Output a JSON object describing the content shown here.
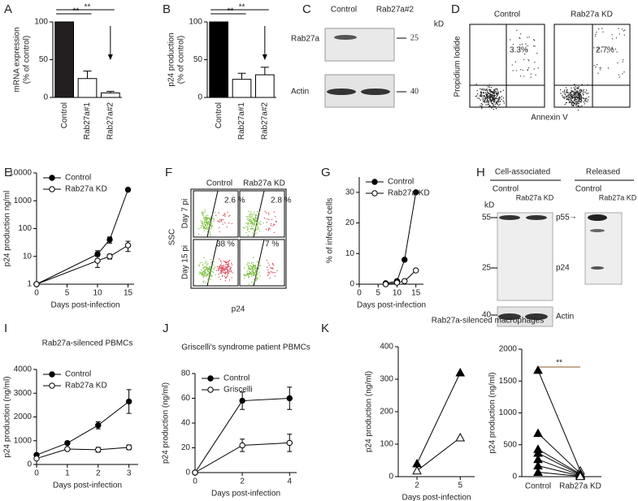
{
  "chart_data": [
    {
      "type": "bar",
      "panel": "A",
      "ylabel": [
        "mRNA expression",
        "(% of control)"
      ],
      "categories": [
        "Control",
        "Rab27a#1",
        "Rab27a#2"
      ],
      "values": [
        100,
        25,
        6
      ],
      "errors": [
        0,
        10,
        2
      ],
      "fills": [
        "#231f20",
        "#ffffff",
        "#ffffff"
      ],
      "ylim": [
        0,
        100
      ],
      "yticks": [
        0,
        50,
        100
      ],
      "significance": [
        "**",
        "**"
      ]
    },
    {
      "type": "bar",
      "panel": "B",
      "ylabel": [
        "p24 production",
        "(% of control)"
      ],
      "categories": [
        "Control",
        "Rab27a#1",
        "Rab27a#2"
      ],
      "values": [
        100,
        24,
        30
      ],
      "errors": [
        0,
        8,
        10
      ],
      "fills": [
        "#000000",
        "#ffffff",
        "#ffffff"
      ],
      "ylim": [
        0,
        100
      ],
      "yticks": [
        0,
        50,
        100
      ],
      "significance": [
        "**",
        "**"
      ]
    },
    {
      "type": "line",
      "panel": "E",
      "ylabel": [
        "p24 production ng/ml"
      ],
      "xlabel": "Days post-infection",
      "x": [
        0,
        10,
        12,
        15
      ],
      "log_y": true,
      "xlim": [
        0,
        16
      ],
      "ylim": [
        1,
        10000
      ],
      "xticks": [
        0,
        5,
        10,
        15
      ],
      "yticks": [
        1,
        10,
        100,
        1000,
        10000
      ],
      "legend": "upper left",
      "series": [
        {
          "name": "Control",
          "color": "#000000",
          "filled": true,
          "values": [
            1,
            12,
            40,
            2500
          ],
          "errors": [
            0,
            4,
            10,
            0
          ]
        },
        {
          "name": "Rab27a KD",
          "color": "#000000",
          "filled": false,
          "values": [
            1,
            7,
            10,
            25
          ],
          "errors": [
            0,
            3,
            2,
            10
          ]
        }
      ]
    },
    {
      "type": "line",
      "panel": "G",
      "ylabel": [
        "% of infected cells"
      ],
      "xlabel": "Days post-infection",
      "x": [
        7,
        10,
        12,
        15
      ],
      "xlim": [
        0,
        17
      ],
      "ylim": [
        0,
        35
      ],
      "xticks": [
        0,
        5,
        10,
        15
      ],
      "yticks": [
        0,
        10,
        20,
        30
      ],
      "legend": "upper left",
      "series": [
        {
          "name": "Control",
          "color": "#000000",
          "filled": true,
          "values": [
            0.3,
            1,
            8,
            30
          ]
        },
        {
          "name": "Rab27a KD",
          "color": "#000000",
          "filled": false,
          "values": [
            0,
            0.5,
            1,
            4.5
          ]
        }
      ]
    },
    {
      "type": "line",
      "panel": "I",
      "title": "Rab27a-silenced PBMCs",
      "ylabel": [
        "p24 production (ng/ml)"
      ],
      "xlabel": "Days post-infection",
      "x": [
        0,
        1,
        2,
        3
      ],
      "xlim": [
        0,
        3.3
      ],
      "ylim": [
        0,
        4000
      ],
      "xticks": [
        0,
        1,
        2,
        3
      ],
      "yticks": [
        0,
        1000,
        2000,
        3000,
        4000
      ],
      "legend": "upper left",
      "series": [
        {
          "name": "Control",
          "color": "#000000",
          "filled": true,
          "values": [
            400,
            900,
            1650,
            2650
          ],
          "errors": [
            50,
            60,
            150,
            500
          ]
        },
        {
          "name": "Rab27a KD",
          "color": "#000000",
          "filled": false,
          "values": [
            250,
            650,
            620,
            720
          ],
          "errors": [
            40,
            50,
            100,
            100
          ]
        }
      ]
    },
    {
      "type": "line",
      "panel": "J",
      "title": "Griscelli's syndrome patient PBMCs",
      "ylabel": [
        "p24 production (ng/ml)"
      ],
      "xlabel": "Days post-infection",
      "x": [
        0,
        2,
        4
      ],
      "xlim": [
        0,
        4.3
      ],
      "ylim": [
        0,
        80
      ],
      "xticks": [
        0,
        2,
        4
      ],
      "yticks": [
        0,
        20,
        40,
        60,
        80
      ],
      "legend": "upper left",
      "series": [
        {
          "name": "Control",
          "color": "#000000",
          "filled": true,
          "values": [
            0,
            58,
            60
          ],
          "errors": [
            0,
            7,
            9
          ]
        },
        {
          "name": "Griscelli",
          "color": "#000000",
          "filled": false,
          "values": [
            0,
            22,
            24
          ],
          "errors": [
            0,
            5,
            7
          ]
        }
      ]
    },
    {
      "type": "line",
      "panel": "K",
      "title": "Rab27a-silenced macrophages",
      "marker": "triangle",
      "ylabel": [
        "p24 production (ng/ml)"
      ],
      "xlabel": "Days post-infection",
      "x": [
        2,
        5
      ],
      "xlim": [
        0.7,
        6
      ],
      "ylim": [
        0,
        400
      ],
      "xticks": [
        2,
        5
      ],
      "yticks": [
        0,
        100,
        200,
        300,
        400
      ],
      "series": [
        {
          "color": "#000000",
          "filled": true,
          "values": [
            40,
            320
          ]
        },
        {
          "color": "#000000",
          "filled": false,
          "values": [
            18,
            120
          ]
        }
      ]
    },
    {
      "type": "paired",
      "ylabel": [
        "p24 production (ng/ml)"
      ],
      "categories": [
        "Control",
        "Rab27a KD"
      ],
      "ylim": [
        0,
        2000
      ],
      "yticks": [
        0,
        500,
        1000,
        1500,
        2000
      ],
      "significance": [
        "**"
      ],
      "significance_color": "#8b5a2b",
      "pairs": [
        [
          1670,
          90
        ],
        [
          680,
          50
        ],
        [
          430,
          40
        ],
        [
          370,
          30
        ],
        [
          270,
          20
        ],
        [
          170,
          10
        ],
        [
          70,
          5
        ]
      ]
    }
  ],
  "panels": {
    "C": {
      "letter": "C",
      "columns": [
        "Control",
        "Rab27a#2"
      ],
      "unit": "kD",
      "rows": [
        "Rab27a",
        "Actin"
      ],
      "markers": [
        "25",
        "40"
      ]
    },
    "D": {
      "letter": "D",
      "columns": [
        "Control",
        "Rab27a KD"
      ],
      "gates": [
        "3.3%",
        "2.7%"
      ],
      "ylabel": "Propidium Iodide",
      "xlabel": "Annexin V"
    },
    "F": {
      "letter": "F",
      "columns": [
        "Control",
        "Rab27a KD"
      ],
      "rows": [
        "Day 7 pi",
        "Day 15 pi"
      ],
      "gates": [
        "2.6 %",
        "2.8 %",
        "38 %",
        "7 %"
      ],
      "ylabel": "SSC",
      "xlabel": "p24"
    },
    "H": {
      "letter": "H",
      "groups": [
        "Cell-associated",
        "Released"
      ],
      "columns": [
        "Control",
        "Rab27a KD",
        "Control",
        "Rab27a KD"
      ],
      "unit": "kD",
      "markers": [
        "55",
        "25",
        "40"
      ],
      "bands": [
        "p55",
        "p24",
        "Actin"
      ]
    }
  }
}
